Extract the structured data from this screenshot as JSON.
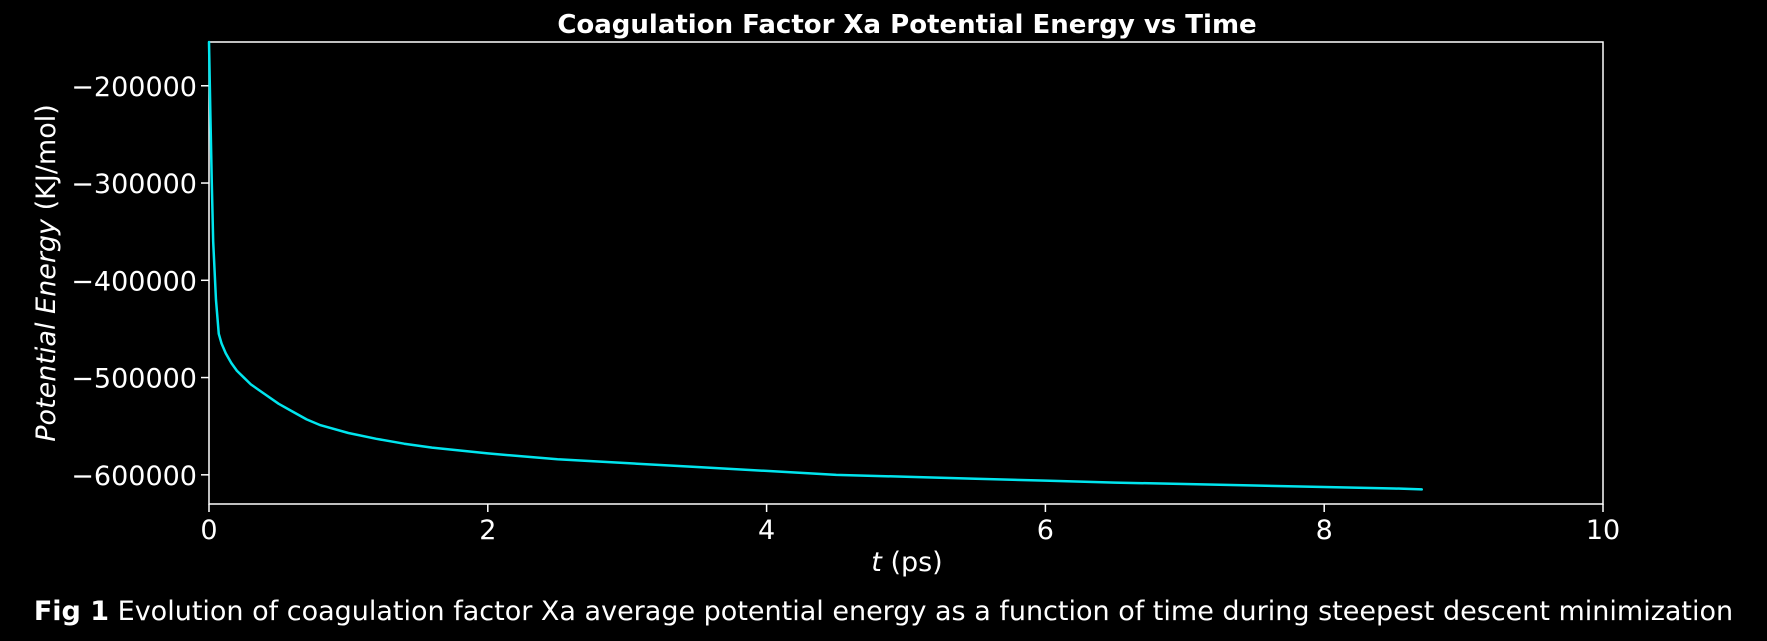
{
  "chart_data": {
    "type": "line",
    "title": "Coagulation Factor Xa Potential Energy vs Time",
    "xlabel_var": "t",
    "xlabel_unit": " (ps)",
    "ylabel_var": "Potential Energy",
    "ylabel_unit": " (KJ/mol)",
    "xlim": [
      0,
      10
    ],
    "ylim": [
      -630000,
      -155000
    ],
    "xticks": [
      0,
      2,
      4,
      6,
      8,
      10
    ],
    "yticks": [
      -200000,
      -300000,
      -400000,
      -500000,
      -600000
    ],
    "ytick_labels": [
      "−200000",
      "−300000",
      "−400000",
      "−500000",
      "−600000"
    ],
    "grid": false,
    "legend": "none",
    "colors": {
      "background": "#000000",
      "line": "#00e5ee",
      "axes": "#ffffff"
    },
    "series": [
      {
        "x": [
          0,
          0.01,
          0.02,
          0.03,
          0.05,
          0.07,
          0.09,
          0.12,
          0.16,
          0.2,
          0.25,
          0.3,
          0.4,
          0.5,
          0.6,
          0.7,
          0.8,
          1.0,
          1.2,
          1.4,
          1.6,
          1.8,
          2.0,
          2.5,
          3.0,
          3.5,
          4.0,
          4.5,
          5.0,
          5.5,
          6.0,
          6.5,
          7.0,
          7.5,
          8.0,
          8.5,
          8.7
        ],
        "y": [
          -155000,
          -230000,
          -300000,
          -360000,
          -420000,
          -455000,
          -465000,
          -475000,
          -485000,
          -493000,
          -500000,
          -507000,
          -517000,
          -527000,
          -535000,
          -543000,
          -549000,
          -557000,
          -563000,
          -568000,
          -572000,
          -575000,
          -578000,
          -584000,
          -588000,
          -592000,
          -596000,
          -600000,
          -602000,
          -604000,
          -606000,
          -608000,
          -609500,
          -611000,
          -612500,
          -614000,
          -615000
        ]
      }
    ]
  },
  "caption": {
    "label": "Fig 1",
    "text": " Evolution of coagulation factor Xa average potential energy as a function of time during steepest descent minimization"
  }
}
